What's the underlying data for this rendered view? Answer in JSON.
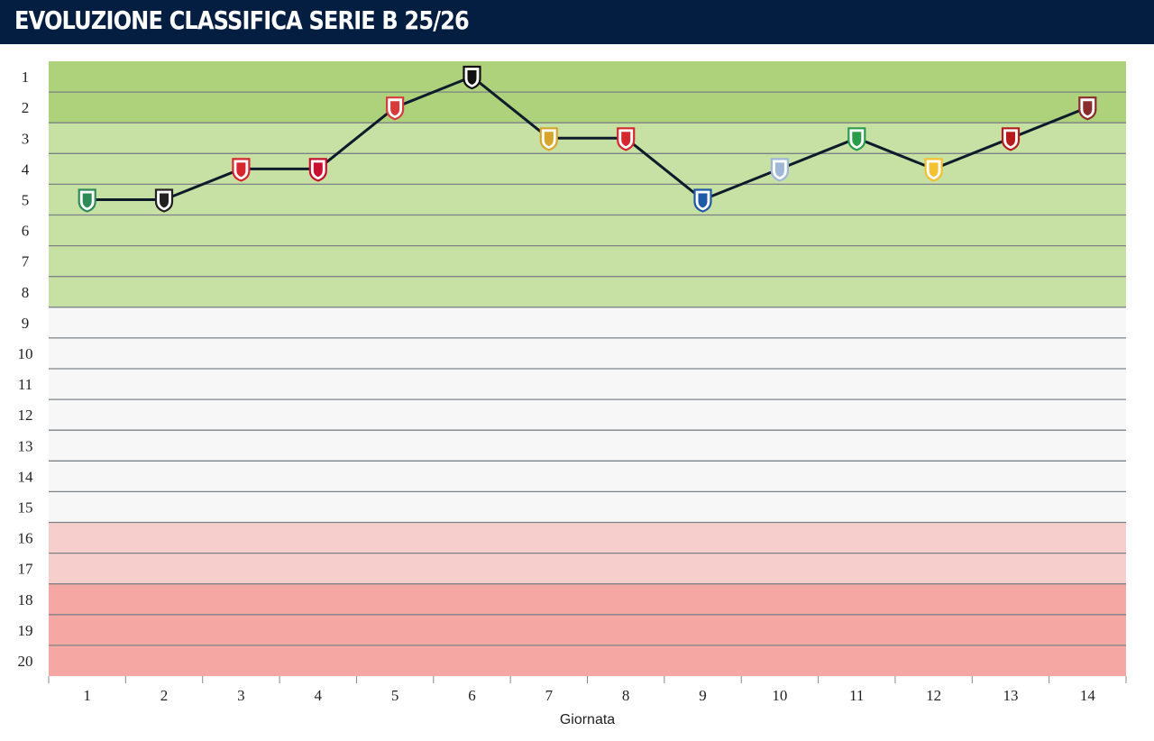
{
  "header": {
    "title": "EVOLUZIONE CLASSIFICA SERIE B 25/26"
  },
  "chart_data": {
    "type": "line",
    "title": "EVOLUZIONE CLASSIFICA SERIE B 25/26",
    "xlabel": "Giornata",
    "ylabel": "",
    "x": [
      1,
      2,
      3,
      4,
      5,
      6,
      7,
      8,
      9,
      10,
      11,
      12,
      13,
      14
    ],
    "y": [
      5,
      5,
      4,
      4,
      2,
      1,
      3,
      3,
      5,
      4,
      3,
      4,
      3,
      2
    ],
    "y_ticks": [
      1,
      2,
      3,
      4,
      5,
      6,
      7,
      8,
      9,
      10,
      11,
      12,
      13,
      14,
      15,
      16,
      17,
      18,
      19,
      20
    ],
    "ylim": [
      20,
      1
    ],
    "y_inverted": true,
    "xlim": [
      1,
      14
    ],
    "grid": true,
    "line_color": "#0d1b2a",
    "markers": "opponent team crest icons",
    "bands": [
      {
        "from": 1,
        "to": 2,
        "color": "#aed17c"
      },
      {
        "from": 3,
        "to": 8,
        "color": "#c7e0a3"
      },
      {
        "from": 9,
        "to": 15,
        "color": "#f7f7f7"
      },
      {
        "from": 16,
        "to": 17,
        "color": "#f6cfcc"
      },
      {
        "from": 18,
        "to": 20,
        "color": "#f5a8a3"
      }
    ],
    "crest_colors": [
      "#2e8b57",
      "#222222",
      "#d7262e",
      "#c8102e",
      "#d93a3a",
      "#111111",
      "#d8a42a",
      "#d7262e",
      "#1f5aa6",
      "#9fb8d8",
      "#2a9d4b",
      "#f2c230",
      "#b71c1c",
      "#8b2c2c"
    ]
  }
}
